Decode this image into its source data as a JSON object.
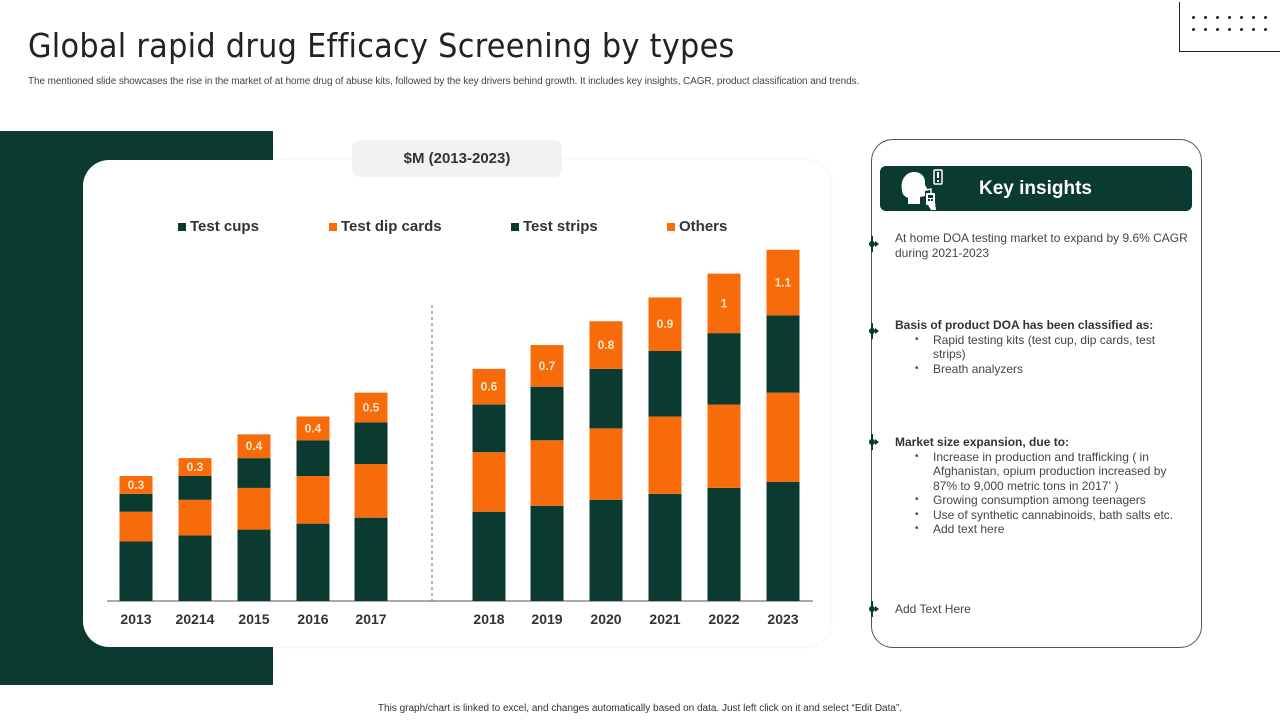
{
  "header": {
    "title": "Global rapid drug Efficacy Screening by types",
    "subtitle": "The mentioned  slide showcases the rise in the market of at home drug of abuse kits,  followed by the key drivers behind growth. It includes key insights, CAGR, product classification and trends."
  },
  "chart_pill": "$M (2013-2023)",
  "colors": {
    "dark_green": "#0a3a30",
    "orange": "#f76b0a",
    "label_text": "#f5e6c8"
  },
  "chart_data": {
    "type": "bar",
    "stacked": true,
    "title": "$M (2013-2023)",
    "xlabel": "",
    "ylabel": "",
    "categories": [
      "2013",
      "20214",
      "2015",
      "2016",
      "2017",
      "2018",
      "2019",
      "2020",
      "2021",
      "2022",
      "2023"
    ],
    "series": [
      {
        "name": "Test cups",
        "color": "#0a3a30",
        "values": [
          1.0,
          1.1,
          1.2,
          1.3,
          1.4,
          1.5,
          1.6,
          1.7,
          1.8,
          1.9,
          2.0
        ]
      },
      {
        "name": "Test dip cards",
        "color": "#f76b0a",
        "values": [
          0.5,
          0.6,
          0.7,
          0.8,
          0.9,
          1.0,
          1.1,
          1.2,
          1.3,
          1.4,
          1.5
        ]
      },
      {
        "name": "Test strips",
        "color": "#0a3a30",
        "values": [
          0.3,
          0.4,
          0.5,
          0.6,
          0.7,
          0.8,
          0.9,
          1.0,
          1.1,
          1.2,
          1.3
        ]
      },
      {
        "name": "Others",
        "color": "#f76b0a",
        "values": [
          0.3,
          0.3,
          0.4,
          0.4,
          0.5,
          0.6,
          0.7,
          0.8,
          0.9,
          1.0,
          1.1
        ]
      }
    ],
    "data_labels": {
      "series": "Others",
      "labels": [
        "0.3",
        "0.3",
        "0.4",
        "0.4",
        "0.5",
        "0.6",
        "0.7",
        "0.8",
        "0.9",
        "1",
        "1.1"
      ]
    },
    "divider_after_category": "2017",
    "ylim": [
      0,
      6.3
    ],
    "grid": false,
    "legend_position": "top"
  },
  "insights": {
    "title": "Key insights",
    "icon": "breath-analyzer-icon",
    "blocks": [
      {
        "text": "At home DOA testing market to expand by 9.6% CAGR during 2021-2023"
      },
      {
        "head": "Basis of product DOA  has been classified as:",
        "bullets": [
          "Rapid testing kits (test cup, dip cards,  test strips)",
          "Breath analyzers"
        ]
      },
      {
        "head": "Market size expansion, due to:",
        "bullets": [
          "Increase in production and trafficking (  in Afghanistan, opium production increased by 87% to  9,000 metric tons in 2017ʼ )",
          "Growing consumption among teenagers",
          "Use of synthetic cannabinoids, bath salts etc.",
          "Add text here"
        ]
      },
      {
        "text": "Add Text Here"
      }
    ]
  },
  "footer_note": "This graph/chart is linked to excel, and changes automatically based on data. Just left click on it and select “Edit Data”."
}
